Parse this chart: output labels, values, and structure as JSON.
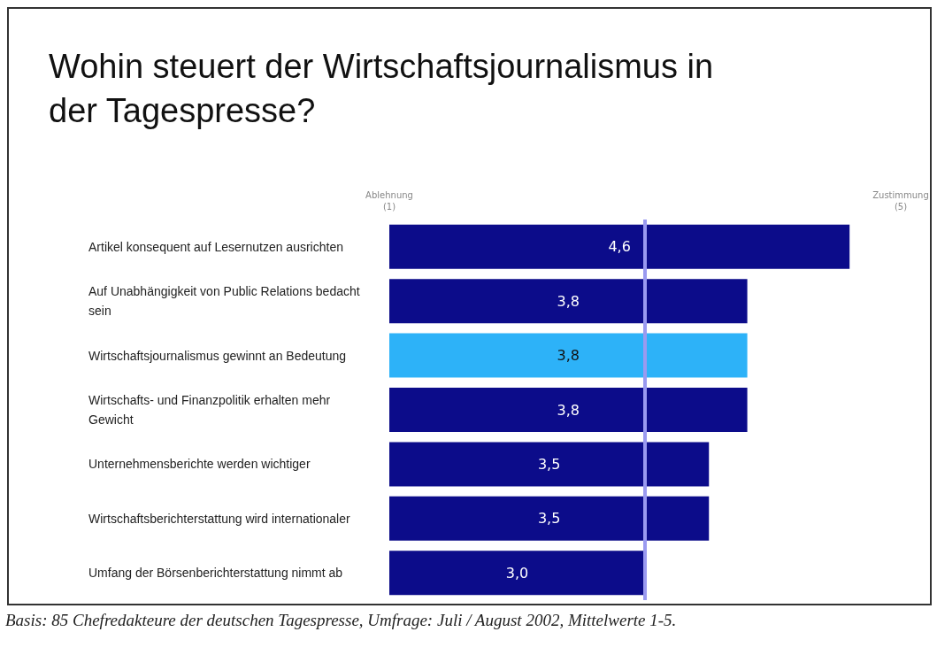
{
  "chart_data": {
    "type": "bar",
    "orientation": "horizontal",
    "title": "Wohin steuert der Wirtschaftsjournalismus in der Tagespresse?",
    "categories": [
      "Artikel konsequent auf Lesernutzen ausrichten",
      "Auf Unabhängigkeit von Public Relations bedacht sein",
      "Wirtschaftsjournalismus gewinnt an Bedeutung",
      "Wirtschafts- und Finanzpolitik erhalten mehr Gewicht",
      "Unternehmensberichte werden wichtiger",
      "Wirtschaftsberichterstattung wird internationaler",
      "Umfang der Börsenberichterstattung nimmt ab"
    ],
    "values": [
      4.6,
      3.8,
      3.8,
      3.8,
      3.5,
      3.5,
      3.0
    ],
    "colors": [
      "#0c0c8a",
      "#0c0c8a",
      "#2db2f8",
      "#0c0c8a",
      "#0c0c8a",
      "#0c0c8a",
      "#0c0c8a"
    ],
    "value_labels": [
      "4,6",
      "3,8",
      "3,8",
      "3,8",
      "3,5",
      "3,5",
      "3,0"
    ],
    "xlim": [
      1,
      5
    ],
    "xticks": [
      {
        "value": 1,
        "label": "Ablehnung\n(1)"
      },
      {
        "value": 5,
        "label": "Zustimmung\n(5)"
      }
    ],
    "ref_lines": [
      {
        "axis": "x",
        "value": 3,
        "color": "#9a9af0"
      }
    ],
    "grid": false,
    "annotations": [
      "Basis: 85 Chefredakteure der deutschen Tagespresse, Umfrage: Juli / August 2002, Mittelwerte 1-5."
    ]
  }
}
